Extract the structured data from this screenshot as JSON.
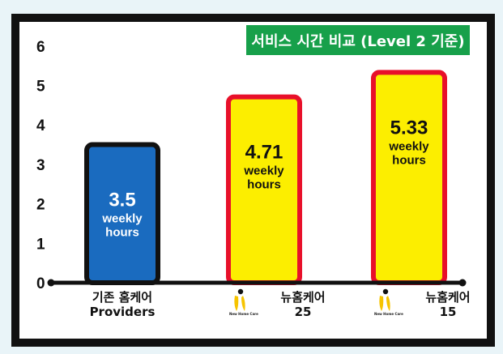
{
  "title": "서비스 시간 비교 (Level 2 기준)",
  "chart_data": {
    "type": "bar",
    "title": "서비스 시간 비교 (Level 2 기준)",
    "categories": [
      {
        "line1": "기존 홈케어",
        "line2": "Providers",
        "logo": false
      },
      {
        "line1": "뉴홈케어",
        "line2": "25",
        "logo": true
      },
      {
        "line1": "뉴홈케어",
        "line2": "15",
        "logo": true
      }
    ],
    "values": [
      3.5,
      4.71,
      5.33
    ],
    "value_labels": [
      "3.5",
      "4.71",
      "5.33"
    ],
    "unit_line1": "weekly",
    "unit_line2": "hours",
    "yticks": [
      "0",
      "1",
      "2",
      "3",
      "4",
      "5",
      "6"
    ],
    "ylim": [
      0,
      6
    ],
    "grid": false,
    "legend": "none",
    "colors": {
      "bar_fills": [
        "#1a6bbf",
        "#fcee00",
        "#fcee00"
      ],
      "bar_borders": [
        "#111111",
        "#e8102a",
        "#e8102a"
      ],
      "bar_text": [
        "#ffffff",
        "#111111",
        "#111111"
      ],
      "title_bg": "#17a04a",
      "axis": "#111111"
    },
    "logo_caption": "New Home Care"
  }
}
